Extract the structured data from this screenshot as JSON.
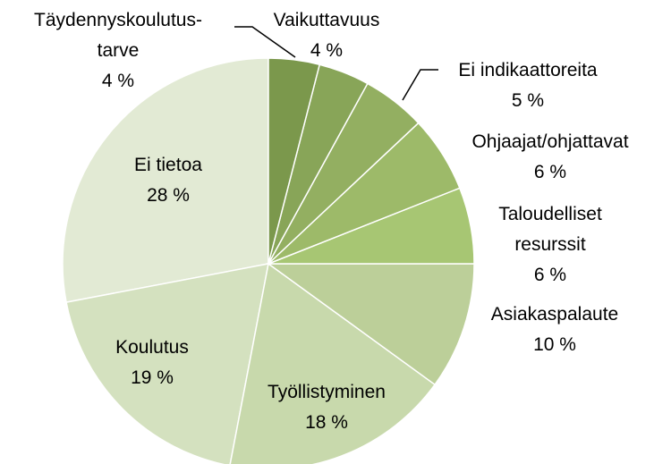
{
  "chart_data": {
    "type": "pie",
    "categories": [
      "Täydennyskoulutus-\ntarve",
      "Vaikuttavuus",
      "Ei indikaattoreita",
      "Ohjaajat/ohjattavat",
      "Taloudelliset\nresurssit",
      "Asiakaspalaute",
      "Työllistyminen",
      "Koulutus",
      "Ei tietoa"
    ],
    "values": [
      4,
      4,
      5,
      6,
      6,
      10,
      18,
      19,
      28
    ],
    "value_labels": [
      "4 %",
      "4 %",
      "5 %",
      "6 %",
      "6 %",
      "10 %",
      "18 %",
      "19 %",
      "28 %"
    ],
    "colors": [
      "#7b984c",
      "#88a558",
      "#93af61",
      "#9dba69",
      "#a7c673",
      "#bccf99",
      "#c8d9ac",
      "#d4e1bf",
      "#e2ead4"
    ]
  }
}
